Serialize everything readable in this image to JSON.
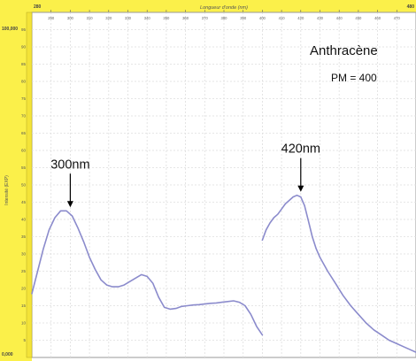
{
  "chart_data": {
    "type": "line",
    "title": "",
    "xlabel": "Longueur d'onde (nm)",
    "ylabel": "Intensité (EXP)",
    "x_corner_labels": {
      "left": "280",
      "right": "480"
    },
    "y_corner_labels": {
      "top": "100,000",
      "bottom": "0,000"
    },
    "xlim": [
      280,
      480
    ],
    "ylim": [
      0,
      100
    ],
    "x_ticks": [
      290,
      300,
      310,
      320,
      330,
      340,
      350,
      360,
      370,
      380,
      390,
      400,
      410,
      420,
      430,
      440,
      450,
      460,
      470
    ],
    "y_ticks": [
      5,
      10,
      15,
      20,
      25,
      30,
      35,
      40,
      45,
      50,
      55,
      60,
      65,
      70,
      75,
      80,
      85,
      90,
      95
    ],
    "grid": true,
    "series": [
      {
        "color": "#8b8bcc",
        "x": [
          280,
          283,
          286,
          289,
          292,
          295,
          298,
          301,
          304,
          307,
          310,
          313,
          316,
          319,
          322,
          325,
          328,
          331,
          334,
          337,
          340,
          343,
          346,
          349,
          352,
          355,
          358,
          361,
          364,
          367,
          370,
          373,
          376,
          379,
          382,
          385,
          388,
          391,
          394,
          397,
          400
        ],
        "y": [
          18.5,
          25,
          31.5,
          37,
          40.5,
          42.5,
          42.5,
          41,
          37.5,
          33.5,
          29,
          25.5,
          22.5,
          21,
          20.5,
          20.5,
          21,
          22,
          23,
          24,
          23.5,
          21.5,
          17.5,
          14.5,
          14,
          14.2,
          14.8,
          15,
          15.2,
          15.3,
          15.5,
          15.7,
          15.8,
          16,
          16.2,
          16.4,
          16,
          15,
          12.5,
          9,
          6.5
        ]
      },
      {
        "color": "#8b8bcc",
        "x": [
          400,
          402,
          404,
          406,
          408,
          410,
          412,
          414,
          416,
          418,
          420,
          422,
          424,
          426,
          428,
          430,
          434,
          438,
          442,
          446,
          450,
          454,
          458,
          462,
          466,
          470,
          474,
          478,
          480
        ],
        "y": [
          34,
          37,
          39,
          40.5,
          41.5,
          43,
          44.5,
          45.5,
          46.5,
          47,
          46.5,
          44,
          39.5,
          35,
          31.5,
          29,
          25,
          21.5,
          18,
          15,
          12.5,
          10,
          8,
          6.5,
          5,
          4,
          3,
          2,
          1.5
        ]
      }
    ],
    "annotations": [
      {
        "text": "300nm",
        "x": 300,
        "y": 42.5
      },
      {
        "text": "420nm",
        "x": 420,
        "y": 47
      },
      {
        "text": "Anthracène"
      },
      {
        "text": "PM = 400"
      }
    ]
  }
}
